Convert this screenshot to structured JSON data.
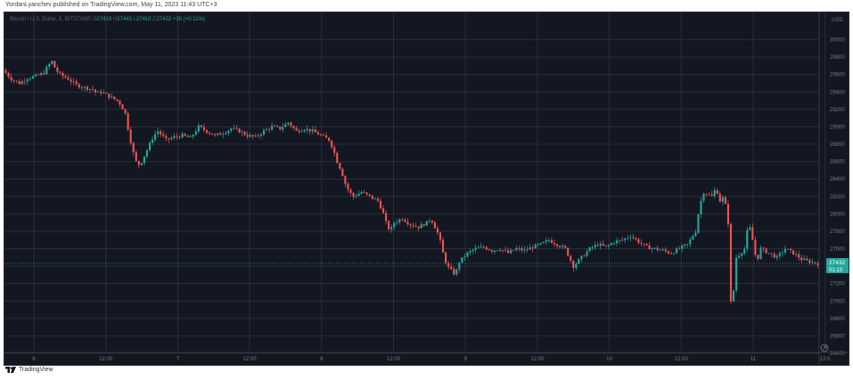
{
  "header": {
    "publisher_line": "YordanLyanchev published on TradingView.com, May 11, 2023 11:43 UTC+3"
  },
  "legend": {
    "symbol": "Bitcoin / U.S. Dollar, 5, BITSTAMP",
    "open_label": "O",
    "open": "27410",
    "high_label": "H",
    "high": "27443",
    "low_label": "L",
    "low": "27410",
    "close_label": "C",
    "close": "27432",
    "change": "+30 (+0.11%)"
  },
  "footer": {
    "brand": "TradingView"
  },
  "chart_data": {
    "type": "candlestick",
    "currency_label": "USD",
    "ylim": [
      26400,
      30200
    ],
    "y_ticks": [
      "30000",
      "29800",
      "29600",
      "29400",
      "29200",
      "29000",
      "28800",
      "28600",
      "28400",
      "28200",
      "28000",
      "27800",
      "27600",
      "27400",
      "27200",
      "27000",
      "26800",
      "26600",
      "26400"
    ],
    "x_ticks": [
      "6",
      "12:00",
      "7",
      "12:00",
      "8",
      "12:00",
      "9",
      "12:00",
      "10",
      "12:00",
      "11",
      "12:0"
    ],
    "last_price": "27432",
    "countdown": "01:13",
    "colors": {
      "up": "#26a69a",
      "down": "#ef5350",
      "grid": "#2a2e39",
      "axis_text": "#787b86",
      "last_price_bg": "#26a69a"
    },
    "price_path": [
      [
        0,
        29650
      ],
      [
        0.01,
        29550
      ],
      [
        0.02,
        29500
      ],
      [
        0.03,
        29560
      ],
      [
        0.04,
        29580
      ],
      [
        0.05,
        29620
      ],
      [
        0.055,
        29700
      ],
      [
        0.06,
        29750
      ],
      [
        0.065,
        29650
      ],
      [
        0.07,
        29600
      ],
      [
        0.08,
        29550
      ],
      [
        0.09,
        29480
      ],
      [
        0.1,
        29450
      ],
      [
        0.11,
        29430
      ],
      [
        0.115,
        29380
      ],
      [
        0.12,
        29400
      ],
      [
        0.13,
        29350
      ],
      [
        0.14,
        29300
      ],
      [
        0.145,
        29250
      ],
      [
        0.15,
        29150
      ],
      [
        0.155,
        28900
      ],
      [
        0.16,
        28700
      ],
      [
        0.165,
        28550
      ],
      [
        0.17,
        28600
      ],
      [
        0.175,
        28700
      ],
      [
        0.18,
        28800
      ],
      [
        0.185,
        28900
      ],
      [
        0.19,
        28950
      ],
      [
        0.2,
        28850
      ],
      [
        0.21,
        28880
      ],
      [
        0.22,
        28900
      ],
      [
        0.23,
        28870
      ],
      [
        0.24,
        29000
      ],
      [
        0.25,
        28950
      ],
      [
        0.26,
        28900
      ],
      [
        0.27,
        28930
      ],
      [
        0.28,
        28980
      ],
      [
        0.29,
        28950
      ],
      [
        0.3,
        28900
      ],
      [
        0.31,
        28880
      ],
      [
        0.32,
        28950
      ],
      [
        0.33,
        29000
      ],
      [
        0.34,
        28980
      ],
      [
        0.35,
        29050
      ],
      [
        0.36,
        28950
      ],
      [
        0.37,
        28980
      ],
      [
        0.38,
        28950
      ],
      [
        0.39,
        28900
      ],
      [
        0.4,
        28850
      ],
      [
        0.405,
        28750
      ],
      [
        0.41,
        28600
      ],
      [
        0.415,
        28500
      ],
      [
        0.42,
        28350
      ],
      [
        0.425,
        28250
      ],
      [
        0.43,
        28200
      ],
      [
        0.44,
        28250
      ],
      [
        0.45,
        28200
      ],
      [
        0.46,
        28150
      ],
      [
        0.465,
        28050
      ],
      [
        0.47,
        27900
      ],
      [
        0.475,
        27800
      ],
      [
        0.48,
        27900
      ],
      [
        0.49,
        27950
      ],
      [
        0.5,
        27880
      ],
      [
        0.51,
        27850
      ],
      [
        0.52,
        27900
      ],
      [
        0.525,
        27950
      ],
      [
        0.53,
        27850
      ],
      [
        0.535,
        27750
      ],
      [
        0.54,
        27550
      ],
      [
        0.545,
        27400
      ],
      [
        0.55,
        27350
      ],
      [
        0.555,
        27300
      ],
      [
        0.56,
        27450
      ],
      [
        0.57,
        27550
      ],
      [
        0.58,
        27600
      ],
      [
        0.59,
        27620
      ],
      [
        0.6,
        27580
      ],
      [
        0.61,
        27600
      ],
      [
        0.62,
        27550
      ],
      [
        0.63,
        27600
      ],
      [
        0.64,
        27580
      ],
      [
        0.65,
        27620
      ],
      [
        0.66,
        27650
      ],
      [
        0.67,
        27700
      ],
      [
        0.68,
        27650
      ],
      [
        0.69,
        27600
      ],
      [
        0.7,
        27400
      ],
      [
        0.705,
        27450
      ],
      [
        0.71,
        27500
      ],
      [
        0.72,
        27600
      ],
      [
        0.73,
        27650
      ],
      [
        0.74,
        27620
      ],
      [
        0.75,
        27680
      ],
      [
        0.76,
        27700
      ],
      [
        0.77,
        27750
      ],
      [
        0.78,
        27680
      ],
      [
        0.79,
        27620
      ],
      [
        0.8,
        27600
      ],
      [
        0.81,
        27580
      ],
      [
        0.82,
        27550
      ],
      [
        0.83,
        27600
      ],
      [
        0.84,
        27650
      ],
      [
        0.85,
        27800
      ],
      [
        0.855,
        28100
      ],
      [
        0.86,
        28250
      ],
      [
        0.87,
        28200
      ],
      [
        0.875,
        28300
      ],
      [
        0.88,
        28150
      ],
      [
        0.885,
        28200
      ],
      [
        0.89,
        27900
      ],
      [
        0.892,
        27050
      ],
      [
        0.895,
        26900
      ],
      [
        0.898,
        27300
      ],
      [
        0.9,
        27500
      ],
      [
        0.91,
        27600
      ],
      [
        0.915,
        27900
      ],
      [
        0.92,
        27700
      ],
      [
        0.925,
        27450
      ],
      [
        0.93,
        27600
      ],
      [
        0.94,
        27550
      ],
      [
        0.95,
        27500
      ],
      [
        0.96,
        27600
      ],
      [
        0.97,
        27550
      ],
      [
        0.98,
        27480
      ],
      [
        0.99,
        27450
      ],
      [
        1.0,
        27432
      ]
    ]
  }
}
